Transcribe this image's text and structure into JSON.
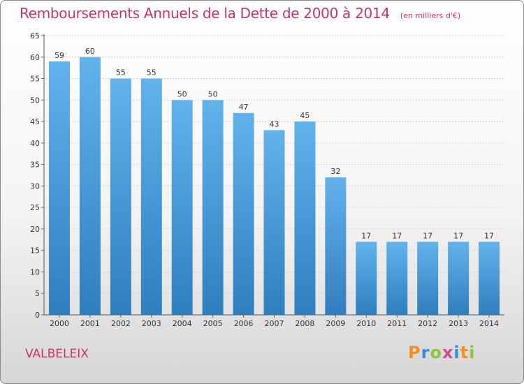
{
  "header": {
    "title": "Remboursements Annuels de la Dette de 2000 à 2014",
    "subtitle": "(en milliers d'€)"
  },
  "footer": {
    "commune": "VALBELEIX",
    "brand": [
      "P",
      "r",
      "o",
      "x",
      "i",
      "t",
      "i"
    ]
  },
  "colors": {
    "title": "#c8326a",
    "bar_top": "#62b2ec",
    "bar_bottom": "#2f7fc0",
    "brand": [
      "#f29020",
      "#2f8fd8",
      "#8cc43c",
      "#d64a8c",
      "#2f8fd8",
      "#f29020",
      "#8cc43c"
    ]
  },
  "chart_data": {
    "type": "bar",
    "categories": [
      "2000",
      "2001",
      "2002",
      "2003",
      "2004",
      "2005",
      "2006",
      "2007",
      "2008",
      "2009",
      "2010",
      "2011",
      "2012",
      "2013",
      "2014"
    ],
    "values": [
      59,
      60,
      55,
      55,
      50,
      50,
      47,
      43,
      45,
      32,
      17,
      17,
      17,
      17,
      17
    ],
    "ylim": [
      0,
      65
    ],
    "yticks": [
      0,
      5,
      10,
      15,
      20,
      25,
      30,
      35,
      40,
      45,
      50,
      55,
      60,
      65
    ],
    "grid": true,
    "data_labels": true
  }
}
